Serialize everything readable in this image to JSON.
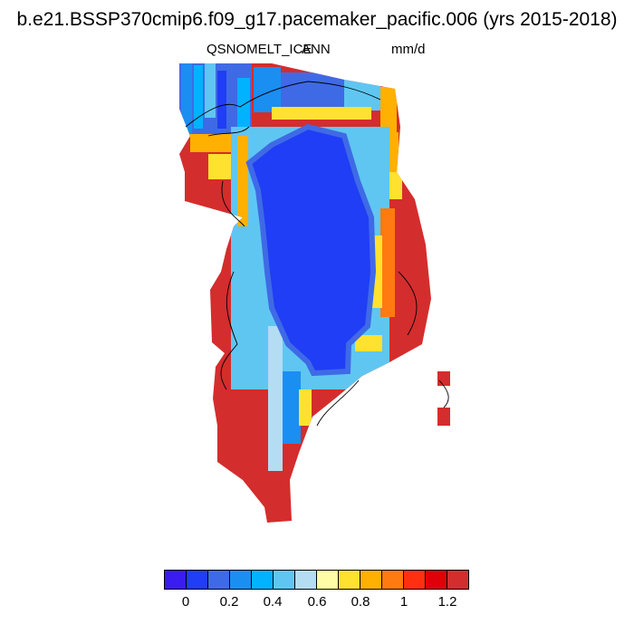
{
  "title": "b.e21.BSSP370cmip6.f09_g17.pacemaker_pacific.006 (yrs 2015-2018)",
  "left_label": "QSNOMELT_ICE",
  "center_label": "ANN",
  "units": "mm/d",
  "colorbar": {
    "colors": [
      "#3a1cf0",
      "#1f3ef5",
      "#3f6ae6",
      "#1b8ef2",
      "#00b2ff",
      "#5fc6f2",
      "#b4dcf2",
      "#fffca6",
      "#ffe130",
      "#ffb000",
      "#ff7a10",
      "#ff3010",
      "#e0000a",
      "#d42d2d"
    ],
    "labels": [
      "0",
      "0.2",
      "0.4",
      "0.6",
      "0.8",
      "1",
      "1.2"
    ]
  },
  "chart_data": {
    "type": "heatmap",
    "variable": "QSNOMELT_ICE",
    "season": "ANN",
    "units": "mm/d",
    "levels": [
      0,
      0.1,
      0.2,
      0.3,
      0.4,
      0.5,
      0.6,
      0.7,
      0.8,
      0.9,
      1.0,
      1.1,
      1.2
    ],
    "region_values": {
      "ice_sheet_interior": 0.05,
      "ice_sheet_margin": 0.5,
      "coastal_periphery": 1.3
    }
  }
}
